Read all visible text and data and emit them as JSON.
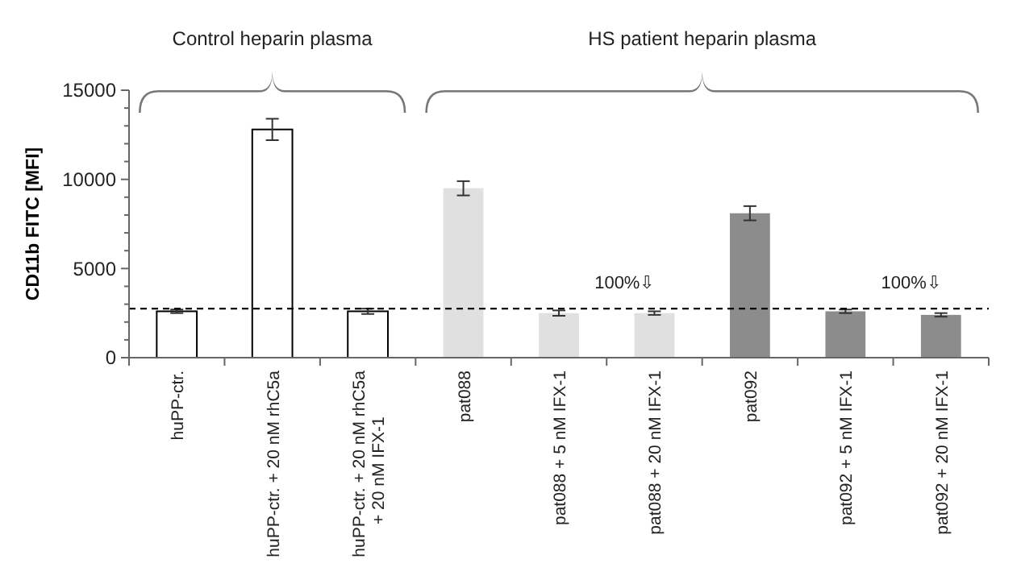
{
  "chart_data": {
    "type": "bar",
    "ylabel": "CD11b FITC [MFI]",
    "categories": [
      "huPP-ctr.",
      "huPP-ctr. + 20 nM rhC5a",
      "huPP-ctr. + 20 nM rhC5a + 20 nM IFX-1",
      "pat088",
      "pat088 + 5 nM IFX-1",
      "pat088 + 20 nM IFX-1",
      "pat092",
      "pat092 + 5 nM IFX-1",
      "pat092 + 20 nM IFX-1"
    ],
    "values": [
      2600,
      12800,
      2600,
      9500,
      2500,
      2500,
      8100,
      2600,
      2400
    ],
    "errors": [
      100,
      600,
      150,
      400,
      150,
      100,
      400,
      100,
      100
    ],
    "colors": [
      "#ffffff",
      "#ffffff",
      "#ffffff",
      "#e0e0e0",
      "#e0e0e0",
      "#e0e0e0",
      "#8c8c8c",
      "#8c8c8c",
      "#8c8c8c"
    ],
    "ylim": [
      0,
      15000
    ],
    "yticks": [
      0,
      {
        "value": 1000,
        "label": null
      },
      {
        "value": 2000,
        "label": null
      },
      {
        "value": 3000,
        "label": null
      },
      {
        "value": 4000,
        "label": null
      },
      5000,
      {
        "value": 6000,
        "label": null
      },
      {
        "value": 7000,
        "label": null
      },
      {
        "value": 8000,
        "label": null
      },
      {
        "value": 9000,
        "label": null
      },
      10000,
      {
        "value": 11000,
        "label": null
      },
      {
        "value": 12000,
        "label": null
      },
      {
        "value": 13000,
        "label": null
      },
      {
        "value": 14000,
        "label": null
      },
      15000
    ],
    "ref_lines": [
      {
        "axis": "y",
        "value": 2750,
        "line_style": "dashed",
        "color": "#000000"
      }
    ],
    "annotations": [
      "Control heparin plasma",
      "HS patient heparin plasma",
      "100%⇩",
      "100%⇩"
    ],
    "grid": false
  }
}
